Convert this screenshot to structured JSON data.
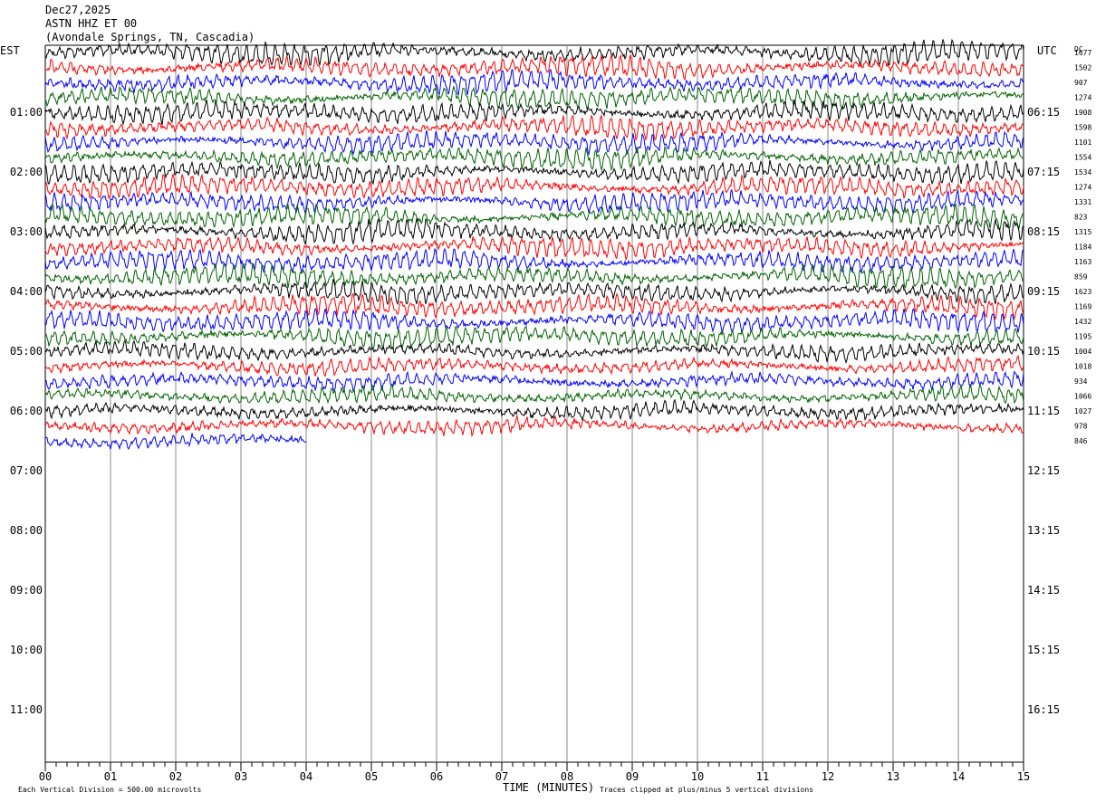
{
  "header": {
    "date": "Dec27,2025",
    "station": "ASTN HHZ ET 00",
    "location": "(Avondale Springs, TN, Cascadia)"
  },
  "chart_data": {
    "type": "line",
    "title": "ASTN HHZ ET 00",
    "left_axis_label": "EST",
    "right_axis_label": "UTC",
    "dc_label": "DC",
    "xlabel": "TIME (MINUTES)",
    "xlim": [
      0,
      15
    ],
    "x_ticks": [
      "00",
      "01",
      "02",
      "03",
      "04",
      "05",
      "06",
      "07",
      "08",
      "09",
      "10",
      "11",
      "12",
      "13",
      "14",
      "15"
    ],
    "est_labels": [
      "01:00",
      "02:00",
      "03:00",
      "04:00",
      "05:00",
      "06:00",
      "07:00",
      "08:00",
      "09:00",
      "10:00",
      "11:00"
    ],
    "utc_labels": [
      "06:15",
      "07:15",
      "08:15",
      "09:15",
      "10:15",
      "11:15",
      "12:15",
      "13:15",
      "14:15",
      "15:15",
      "16:15"
    ],
    "trace_colors": [
      "#000000",
      "#ff0000",
      "#0000ff",
      "#006400"
    ],
    "dc_offsets": [
      1677,
      1502,
      907,
      1274,
      1908,
      1598,
      1101,
      1554,
      1534,
      1274,
      1331,
      823,
      1315,
      1184,
      1163,
      859,
      1623,
      1169,
      1432,
      1195,
      1004,
      1018,
      934,
      1066,
      1027,
      978,
      846
    ],
    "last_trace_end_minutes": 4.0,
    "footer_left": "Each Vertical Division =  500.00 microvolts",
    "footer_right": "Traces clipped at plus/minus 5 vertical divisions"
  }
}
